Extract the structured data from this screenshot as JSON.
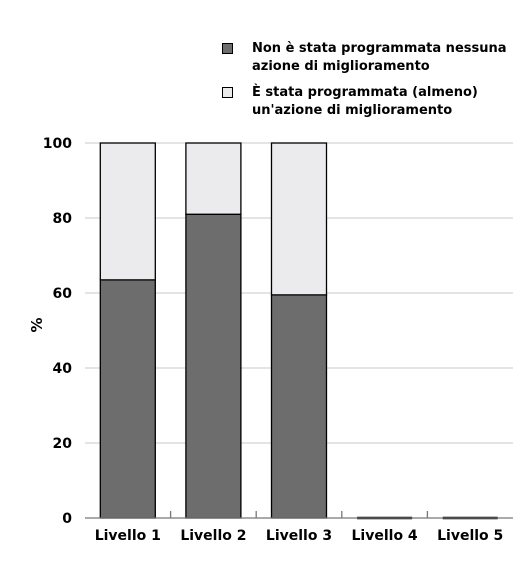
{
  "chart_data": {
    "type": "bar",
    "stacked": true,
    "categories": [
      "Livello 1",
      "Livello 2",
      "Livello 3",
      "Livello 4",
      "Livello 5"
    ],
    "series": [
      {
        "name": "Non è stata programmata nessuna\nazione di miglioramento",
        "color": "#6d6d6d",
        "values": [
          63.5,
          81,
          59.5,
          0,
          0
        ]
      },
      {
        "name": "È stata programmata (almeno)\nun'azione di miglioramento",
        "color": "#ebebee",
        "values": [
          36.5,
          19,
          40.5,
          0,
          0
        ]
      }
    ],
    "ylabel": "%",
    "ylim": [
      0,
      100
    ],
    "yticks": [
      0,
      20,
      40,
      60,
      80,
      100
    ],
    "grid": true,
    "legend_position": "top-right"
  }
}
